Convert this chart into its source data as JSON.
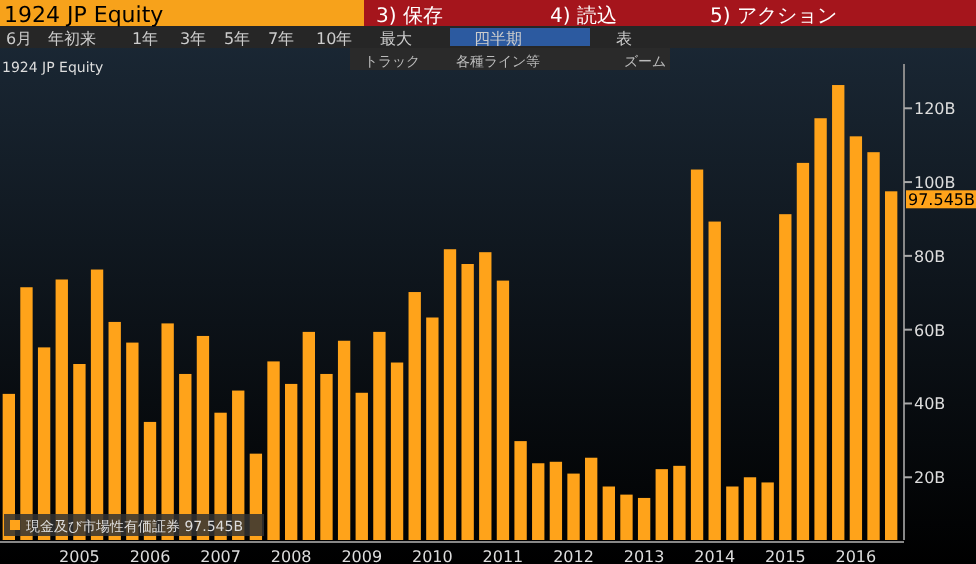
{
  "chart_data": {
    "type": "bar",
    "title": "1924 JP Equity",
    "subtitle": "1924 JP Equity",
    "annotations": [
      "3) 保存",
      "4) 読込",
      "5) アクション",
      "6月",
      "年初来",
      "1年",
      "3年",
      "5年",
      "7年",
      "10年",
      "最大",
      "四半期",
      "表",
      "トラック",
      "各種ライン等",
      "ズーム",
      "97.545B"
    ],
    "categories": [
      null,
      null,
      null,
      null,
      "2005",
      null,
      null,
      null,
      "2006",
      null,
      null,
      null,
      "2007",
      null,
      null,
      null,
      "2008",
      null,
      null,
      null,
      "2009",
      null,
      null,
      null,
      "2010",
      null,
      null,
      null,
      "2011",
      null,
      null,
      null,
      "2012",
      null,
      null,
      null,
      "2013",
      null,
      null,
      null,
      "2014",
      null,
      null,
      null,
      "2015",
      null,
      null,
      null,
      "2016",
      null,
      null
    ],
    "series": [
      {
        "name": "現金及び市場性有価証券 97.545B",
        "color": "#ffa31a",
        "values": [
          42.6,
          71.5,
          55.2,
          73.6,
          50.7,
          76.3,
          62.1,
          56.5,
          35.0,
          61.7,
          48.0,
          58.3,
          37.5,
          43.5,
          26.4,
          51.4,
          45.3,
          59.4,
          48.0,
          57.0,
          42.9,
          59.4,
          51.1,
          70.2,
          63.3,
          81.8,
          77.8,
          81.0,
          73.3,
          29.8,
          23.8,
          24.2,
          21.0,
          25.3,
          17.5,
          15.3,
          14.4,
          22.2,
          23.1,
          103.4,
          89.3,
          17.5,
          20.0,
          18.6,
          91.3,
          105.2,
          117.3,
          126.3,
          112.4,
          108.1,
          97.5
        ]
      }
    ],
    "ylim": [
      3,
      132
    ],
    "yticks": [
      {
        "value": 20,
        "label": "20B"
      },
      {
        "value": 40,
        "label": "40B"
      },
      {
        "value": 60,
        "label": "60B"
      },
      {
        "value": 80,
        "label": "80B"
      },
      {
        "value": 100,
        "label": "100B"
      },
      {
        "value": 120,
        "label": "120B"
      }
    ],
    "legend": "bottom left"
  }
}
